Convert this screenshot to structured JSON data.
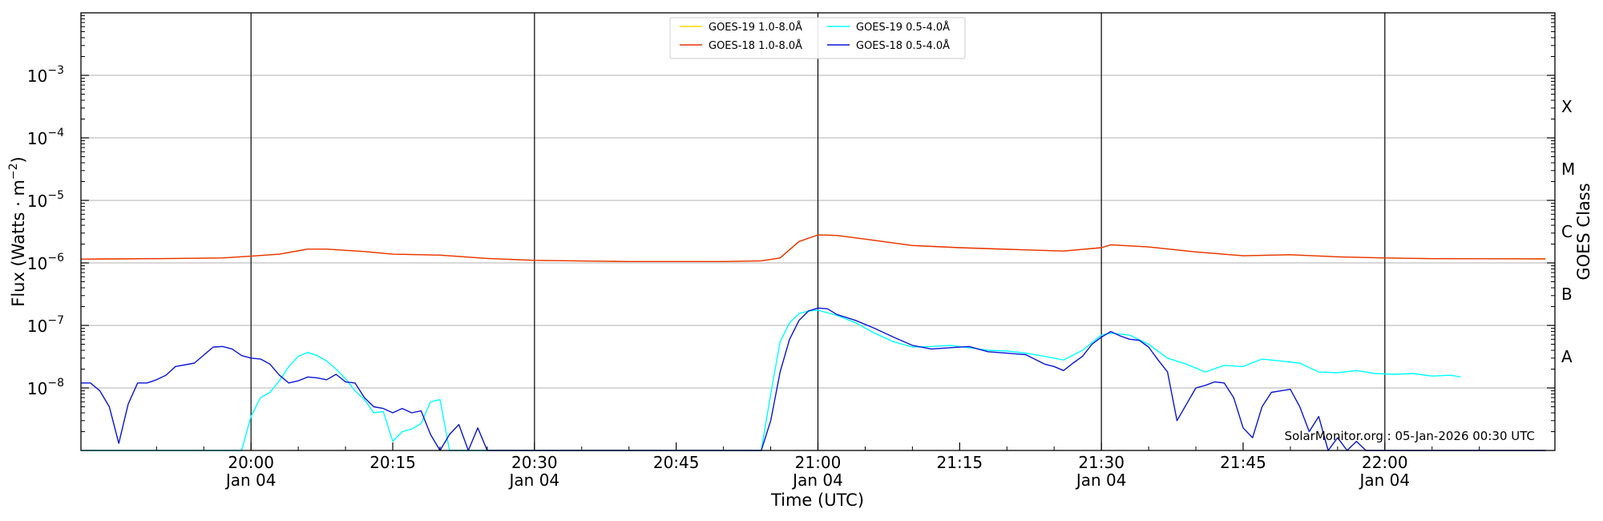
{
  "chart_data": {
    "type": "line",
    "title": "",
    "xlabel": "Time (UTC)",
    "ylabel": "Flux (Watts · m⁻²)",
    "right_axis_label": "GOES Class",
    "y_scale": "log",
    "ylim": [
      1e-09,
      0.01
    ],
    "xlim": [
      "19:42",
      "22:18"
    ],
    "x_ticks": [
      {
        "time": "20:00",
        "label": "20:00",
        "sublabel": "Jan 04",
        "vline": true
      },
      {
        "time": "20:15",
        "label": "20:15",
        "sublabel": "",
        "vline": false
      },
      {
        "time": "20:30",
        "label": "20:30",
        "sublabel": "Jan 04",
        "vline": true
      },
      {
        "time": "20:45",
        "label": "20:45",
        "sublabel": "",
        "vline": false
      },
      {
        "time": "21:00",
        "label": "21:00",
        "sublabel": "Jan 04",
        "vline": true
      },
      {
        "time": "21:15",
        "label": "21:15",
        "sublabel": "",
        "vline": false
      },
      {
        "time": "21:30",
        "label": "21:30",
        "sublabel": "Jan 04",
        "vline": true
      },
      {
        "time": "21:45",
        "label": "21:45",
        "sublabel": "",
        "vline": false
      },
      {
        "time": "22:00",
        "label": "22:00",
        "sublabel": "Jan 04",
        "vline": true
      }
    ],
    "y_ticks": [
      {
        "exp": -8,
        "label": "10",
        "sup": "−8"
      },
      {
        "exp": -7,
        "label": "10",
        "sup": "−7"
      },
      {
        "exp": -6,
        "label": "10",
        "sup": "−6"
      },
      {
        "exp": -5,
        "label": "10",
        "sup": "−5"
      },
      {
        "exp": -4,
        "label": "10",
        "sup": "−4"
      },
      {
        "exp": -3,
        "label": "10",
        "sup": "−3"
      }
    ],
    "goes_classes": [
      {
        "label": "A",
        "exp": -7.5
      },
      {
        "label": "B",
        "exp": -6.5
      },
      {
        "label": "C",
        "exp": -5.5
      },
      {
        "label": "M",
        "exp": -4.5
      },
      {
        "label": "X",
        "exp": -3.5
      }
    ],
    "grid": true,
    "legend_position": "top-center",
    "credit": "SolarMonitor.org : 05-Jan-2026 00:30 UTC",
    "series": [
      {
        "name": "GOES-19 1.0-8.0Å",
        "color": "#ffd700",
        "points": [
          [
            "19:42",
            1.15e-06
          ],
          [
            "19:50",
            1.17e-06
          ],
          [
            "19:57",
            1.2e-06
          ],
          [
            "20:00",
            1.28e-06
          ],
          [
            "20:03",
            1.38e-06
          ],
          [
            "20:06",
            1.66e-06
          ],
          [
            "20:08",
            1.66e-06
          ],
          [
            "20:12",
            1.52e-06
          ],
          [
            "20:15",
            1.38e-06
          ],
          [
            "20:20",
            1.33e-06
          ],
          [
            "20:25",
            1.18e-06
          ],
          [
            "20:30",
            1.1e-06
          ],
          [
            "20:40",
            1.05e-06
          ],
          [
            "20:50",
            1.05e-06
          ],
          [
            "20:54",
            1.08e-06
          ],
          [
            "20:56",
            1.2e-06
          ],
          [
            "20:58",
            2.2e-06
          ],
          [
            "21:00",
            2.8e-06
          ],
          [
            "21:02",
            2.75e-06
          ],
          [
            "21:05",
            2.4e-06
          ],
          [
            "21:10",
            1.9e-06
          ],
          [
            "21:15",
            1.75e-06
          ],
          [
            "21:20",
            1.65e-06
          ],
          [
            "21:26",
            1.55e-06
          ],
          [
            "21:30",
            1.75e-06
          ],
          [
            "21:31",
            1.95e-06
          ],
          [
            "21:35",
            1.8e-06
          ],
          [
            "21:40",
            1.5e-06
          ],
          [
            "21:45",
            1.3e-06
          ],
          [
            "21:50",
            1.35e-06
          ],
          [
            "21:55",
            1.25e-06
          ],
          [
            "22:00",
            1.2e-06
          ],
          [
            "22:05",
            1.17e-06
          ],
          [
            "22:17",
            1.16e-06
          ]
        ]
      },
      {
        "name": "GOES-18 1.0-8.0Å",
        "color": "#e8320c",
        "points": [
          [
            "19:42",
            1.15e-06
          ],
          [
            "19:50",
            1.17e-06
          ],
          [
            "19:57",
            1.2e-06
          ],
          [
            "20:00",
            1.28e-06
          ],
          [
            "20:03",
            1.38e-06
          ],
          [
            "20:06",
            1.66e-06
          ],
          [
            "20:08",
            1.66e-06
          ],
          [
            "20:12",
            1.52e-06
          ],
          [
            "20:15",
            1.38e-06
          ],
          [
            "20:20",
            1.33e-06
          ],
          [
            "20:25",
            1.18e-06
          ],
          [
            "20:30",
            1.1e-06
          ],
          [
            "20:40",
            1.05e-06
          ],
          [
            "20:50",
            1.05e-06
          ],
          [
            "20:54",
            1.08e-06
          ],
          [
            "20:56",
            1.2e-06
          ],
          [
            "20:58",
            2.2e-06
          ],
          [
            "21:00",
            2.8e-06
          ],
          [
            "21:02",
            2.75e-06
          ],
          [
            "21:05",
            2.4e-06
          ],
          [
            "21:10",
            1.9e-06
          ],
          [
            "21:15",
            1.75e-06
          ],
          [
            "21:20",
            1.65e-06
          ],
          [
            "21:26",
            1.55e-06
          ],
          [
            "21:30",
            1.75e-06
          ],
          [
            "21:31",
            1.95e-06
          ],
          [
            "21:35",
            1.8e-06
          ],
          [
            "21:40",
            1.5e-06
          ],
          [
            "21:45",
            1.3e-06
          ],
          [
            "21:50",
            1.35e-06
          ],
          [
            "21:55",
            1.25e-06
          ],
          [
            "22:00",
            1.2e-06
          ],
          [
            "22:05",
            1.17e-06
          ],
          [
            "22:17",
            1.16e-06
          ]
        ]
      },
      {
        "name": "GOES-19 0.5-4.0Å",
        "color": "#00ffff",
        "points": [
          [
            "19:42",
            1e-09
          ],
          [
            "19:59",
            1e-09
          ],
          [
            "20:00",
            3.5e-09
          ],
          [
            "20:01",
            7e-09
          ],
          [
            "20:02",
            8.5e-09
          ],
          [
            "20:03",
            1.3e-08
          ],
          [
            "20:04",
            2.2e-08
          ],
          [
            "20:05",
            3.2e-08
          ],
          [
            "20:06",
            3.7e-08
          ],
          [
            "20:07",
            3.3e-08
          ],
          [
            "20:08",
            2.7e-08
          ],
          [
            "20:09",
            2e-08
          ],
          [
            "20:10",
            1.4e-08
          ],
          [
            "20:11",
            9e-09
          ],
          [
            "20:12",
            6.5e-09
          ],
          [
            "20:13",
            4e-09
          ],
          [
            "20:14",
            4.2e-09
          ],
          [
            "20:15",
            1.4e-09
          ],
          [
            "20:16",
            2e-09
          ],
          [
            "20:17",
            2.2e-09
          ],
          [
            "20:18",
            2.7e-09
          ],
          [
            "20:19",
            6e-09
          ],
          [
            "20:20",
            6.5e-09
          ],
          [
            "20:21",
            1e-09
          ],
          [
            "20:54",
            1e-09
          ],
          [
            "20:55",
            8e-09
          ],
          [
            "20:56",
            5.5e-08
          ],
          [
            "20:57",
            1.1e-07
          ],
          [
            "20:58",
            1.55e-07
          ],
          [
            "20:59",
            1.7e-07
          ],
          [
            "21:00",
            1.75e-07
          ],
          [
            "21:02",
            1.45e-07
          ],
          [
            "21:04",
            1.1e-07
          ],
          [
            "21:06",
            7.5e-08
          ],
          [
            "21:08",
            5.5e-08
          ],
          [
            "21:10",
            4.5e-08
          ],
          [
            "21:12",
            4.6e-08
          ],
          [
            "21:14",
            4.8e-08
          ],
          [
            "21:16",
            4.4e-08
          ],
          [
            "21:18",
            4e-08
          ],
          [
            "21:20",
            3.9e-08
          ],
          [
            "21:22",
            3.6e-08
          ],
          [
            "21:24",
            3.2e-08
          ],
          [
            "21:26",
            2.8e-08
          ],
          [
            "21:28",
            4e-08
          ],
          [
            "21:30",
            7e-08
          ],
          [
            "21:31",
            7.5e-08
          ],
          [
            "21:33",
            7e-08
          ],
          [
            "21:35",
            5e-08
          ],
          [
            "21:37",
            3e-08
          ],
          [
            "21:39",
            2.4e-08
          ],
          [
            "21:41",
            1.8e-08
          ],
          [
            "21:43",
            2.3e-08
          ],
          [
            "21:45",
            2.2e-08
          ],
          [
            "21:47",
            2.9e-08
          ],
          [
            "21:49",
            2.7e-08
          ],
          [
            "21:51",
            2.5e-08
          ],
          [
            "21:53",
            1.8e-08
          ],
          [
            "21:55",
            1.75e-08
          ],
          [
            "21:57",
            1.9e-08
          ],
          [
            "21:59",
            1.7e-08
          ],
          [
            "22:01",
            1.65e-08
          ],
          [
            "22:03",
            1.7e-08
          ],
          [
            "22:05",
            1.55e-08
          ],
          [
            "22:07",
            1.6e-08
          ],
          [
            "22:08",
            1.5e-08
          ]
        ]
      },
      {
        "name": "GOES-18 0.5-4.0Å",
        "color": "#0a14d8",
        "points": [
          [
            "19:42",
            1.2e-08
          ],
          [
            "19:43",
            1.2e-08
          ],
          [
            "19:44",
            9e-09
          ],
          [
            "19:45",
            5e-09
          ],
          [
            "19:46",
            1.3e-09
          ],
          [
            "19:47",
            5.5e-09
          ],
          [
            "19:48",
            1.2e-08
          ],
          [
            "19:49",
            1.2e-08
          ],
          [
            "19:50",
            1.35e-08
          ],
          [
            "19:51",
            1.6e-08
          ],
          [
            "19:52",
            2.2e-08
          ],
          [
            "19:54",
            2.5e-08
          ],
          [
            "19:56",
            4.5e-08
          ],
          [
            "19:57",
            4.6e-08
          ],
          [
            "19:58",
            4.2e-08
          ],
          [
            "19:59",
            3.3e-08
          ],
          [
            "20:00",
            3e-08
          ],
          [
            "20:01",
            2.9e-08
          ],
          [
            "20:02",
            2.4e-08
          ],
          [
            "20:03",
            1.6e-08
          ],
          [
            "20:04",
            1.2e-08
          ],
          [
            "20:05",
            1.3e-08
          ],
          [
            "20:06",
            1.5e-08
          ],
          [
            "20:07",
            1.45e-08
          ],
          [
            "20:08",
            1.35e-08
          ],
          [
            "20:09",
            1.65e-08
          ],
          [
            "20:10",
            1.25e-08
          ],
          [
            "20:11",
            1.2e-08
          ],
          [
            "20:12",
            7e-09
          ],
          [
            "20:13",
            5e-09
          ],
          [
            "20:14",
            4.7e-09
          ],
          [
            "20:15",
            4e-09
          ],
          [
            "20:16",
            4.7e-09
          ],
          [
            "20:17",
            4e-09
          ],
          [
            "20:18",
            4.3e-09
          ],
          [
            "20:19",
            1.8e-09
          ],
          [
            "20:20",
            1e-09
          ],
          [
            "20:21",
            1.8e-09
          ],
          [
            "20:22",
            2.6e-09
          ],
          [
            "20:23",
            1e-09
          ],
          [
            "20:24",
            2.3e-09
          ],
          [
            "20:25",
            1e-09
          ],
          [
            "20:54",
            1e-09
          ],
          [
            "20:55",
            3e-09
          ],
          [
            "20:56",
            1.8e-08
          ],
          [
            "20:57",
            6e-08
          ],
          [
            "20:58",
            1.2e-07
          ],
          [
            "20:59",
            1.7e-07
          ],
          [
            "21:00",
            1.9e-07
          ],
          [
            "21:01",
            1.85e-07
          ],
          [
            "21:02",
            1.5e-07
          ],
          [
            "21:04",
            1.2e-07
          ],
          [
            "21:06",
            9e-08
          ],
          [
            "21:08",
            6.5e-08
          ],
          [
            "21:10",
            4.8e-08
          ],
          [
            "21:12",
            4.2e-08
          ],
          [
            "21:14",
            4.4e-08
          ],
          [
            "21:16",
            4.6e-08
          ],
          [
            "21:18",
            3.8e-08
          ],
          [
            "21:20",
            3.6e-08
          ],
          [
            "21:22",
            3.4e-08
          ],
          [
            "21:24",
            2.4e-08
          ],
          [
            "21:25",
            2.2e-08
          ],
          [
            "21:26",
            1.9e-08
          ],
          [
            "21:27",
            2.5e-08
          ],
          [
            "21:28",
            3.2e-08
          ],
          [
            "21:29",
            5e-08
          ],
          [
            "21:30",
            6.5e-08
          ],
          [
            "21:31",
            8e-08
          ],
          [
            "21:32",
            6.8e-08
          ],
          [
            "21:33",
            6e-08
          ],
          [
            "21:34",
            5.8e-08
          ],
          [
            "21:35",
            4.5e-08
          ],
          [
            "21:36",
            2.8e-08
          ],
          [
            "21:37",
            1.8e-08
          ],
          [
            "21:38",
            3e-09
          ],
          [
            "21:39",
            5.5e-09
          ],
          [
            "21:40",
            1e-08
          ],
          [
            "21:41",
            1.1e-08
          ],
          [
            "21:42",
            1.25e-08
          ],
          [
            "21:43",
            1.2e-08
          ],
          [
            "21:44",
            7e-09
          ],
          [
            "21:45",
            2.3e-09
          ],
          [
            "21:46",
            1.6e-09
          ],
          [
            "21:47",
            5e-09
          ],
          [
            "21:48",
            8.5e-09
          ],
          [
            "21:49",
            9e-09
          ],
          [
            "21:50",
            9.5e-09
          ],
          [
            "21:51",
            5e-09
          ],
          [
            "21:52",
            2e-09
          ],
          [
            "21:53",
            3.5e-09
          ],
          [
            "21:54",
            1e-09
          ],
          [
            "21:55",
            1.6e-09
          ],
          [
            "21:56",
            1e-09
          ],
          [
            "21:57",
            1.4e-09
          ],
          [
            "21:58",
            1e-09
          ],
          [
            "22:17",
            1e-09
          ]
        ]
      }
    ]
  }
}
